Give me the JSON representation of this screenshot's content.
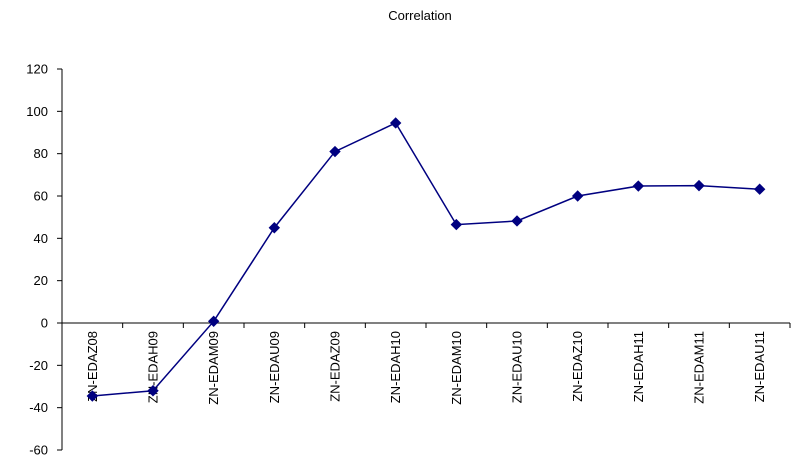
{
  "chart_data": {
    "type": "line",
    "title": "Correlation",
    "xlabel": "",
    "ylabel": "",
    "categories": [
      "ZN-EDAZ08",
      "ZN-EDAH09",
      "ZN-EDAM09",
      "ZN-EDAU09",
      "ZN-EDAZ09",
      "ZN-EDAH10",
      "ZN-EDAM10",
      "ZN-EDAU10",
      "ZN-EDAZ10",
      "ZN-EDAH11",
      "ZN-EDAM11",
      "ZN-EDAU11"
    ],
    "series": [
      {
        "values": [
          -34.5,
          -32,
          0.8,
          45,
          81,
          94.5,
          46.5,
          48.2,
          60,
          64.7,
          64.9,
          63.2
        ],
        "color": "#000080",
        "marker": "diamond"
      }
    ],
    "ylim": [
      -60,
      120
    ],
    "yticks": [
      -60,
      -40,
      -20,
      0,
      20,
      40,
      60,
      80,
      100,
      120
    ],
    "grid": false,
    "legend": "none"
  }
}
